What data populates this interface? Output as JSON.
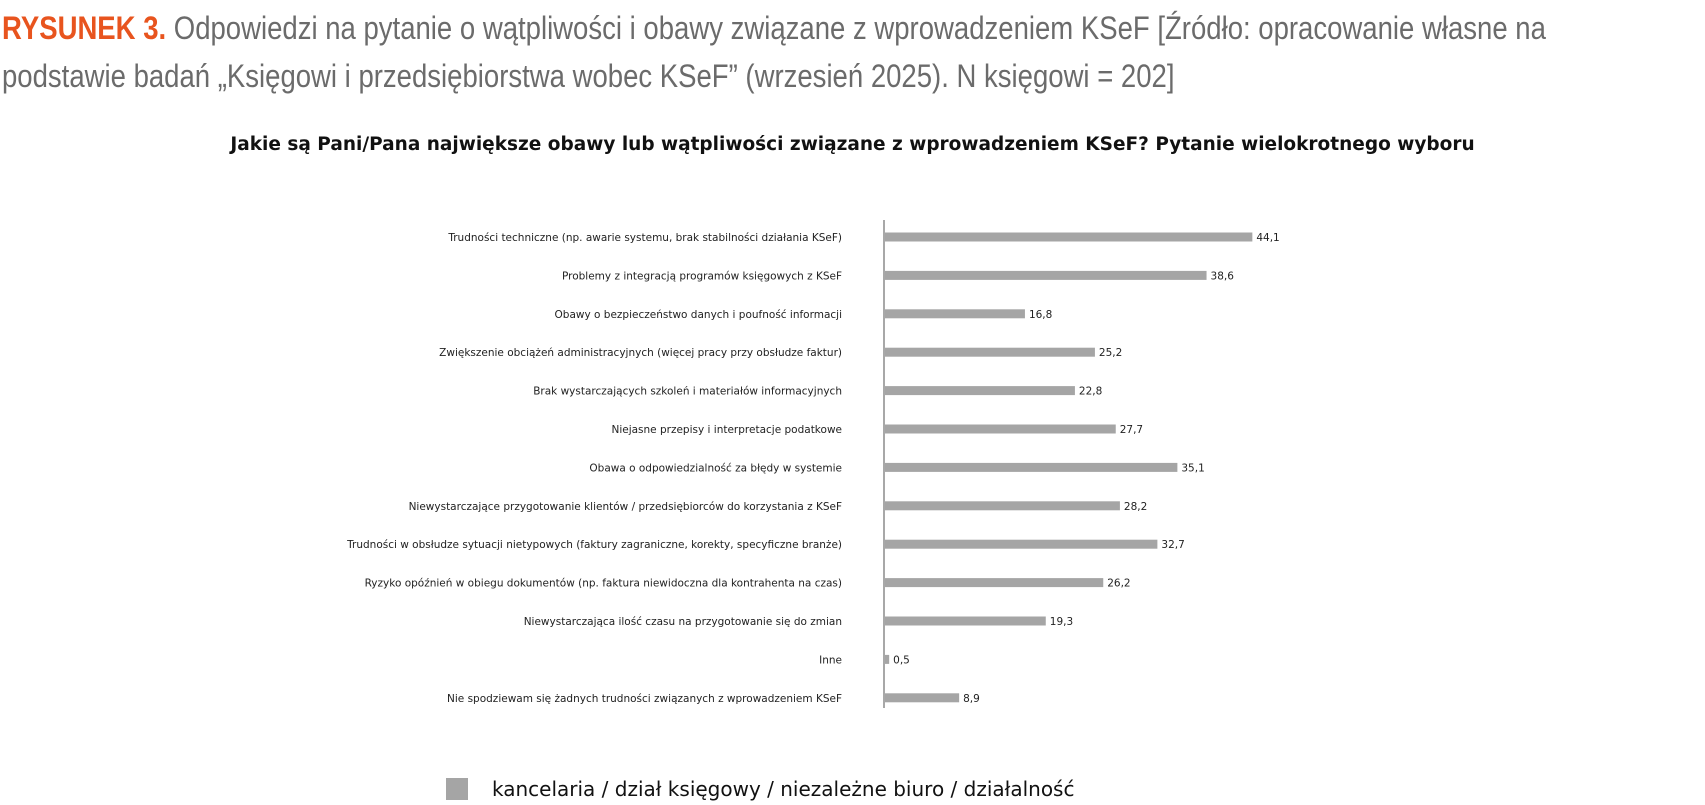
{
  "figure_caption": {
    "label": "RYSUNEK 3.",
    "line1": " Odpowiedzi na pytanie o wątpliwości i obawy związane z wprowadzeniem KSeF [Źródło: opracowanie własne na",
    "line2": "podstawie badań „Księgowi i przedsiębiorstwa wobec KSeF” (wrzesień 2025). N księgowi = 202]"
  },
  "colors": {
    "caption_label": "#e8541e",
    "caption_text": "#6b6b6b",
    "bar": "#a5a5a5",
    "axis": "#8c8c8c"
  },
  "chart_data": {
    "type": "bar",
    "orientation": "horizontal",
    "title": "Jakie są Pani/Pana największe obawy lub wątpliwości związane z wprowadzeniem KSeF? Pytanie wielokrotnego wyboru",
    "categories": [
      "Trudności techniczne (np. awarie systemu, brak stabilności działania KSeF)",
      "Problemy z integracją programów księgowych z KSeF",
      "Obawy o bezpieczeństwo danych i poufność informacji",
      "Zwiększenie obciążeń administracyjnych (więcej pracy przy obsłudze faktur)",
      "Brak wystarczających szkoleń i materiałów informacyjnych",
      "Niejasne przepisy i interpretacje podatkowe",
      "Obawa o odpowiedzialność za błędy w systemie",
      "Niewystarczające przygotowanie klientów / przedsiębiorców do korzystania z KSeF",
      "Trudności w obsłudze sytuacji nietypowych (faktury zagraniczne, korekty, specyficzne branże)",
      "Ryzyko opóźnień w obiegu dokumentów (np. faktura niewidoczna dla kontrahenta na czas)",
      "Niewystarczająca ilość czasu na przygotowanie się do zmian",
      "Inne",
      "Nie spodziewam się żadnych trudności związanych z wprowadzeniem KSeF"
    ],
    "series": [
      {
        "name": "kancelaria / dział księgowy / niezależne biuro / działalność",
        "values": [
          44.1,
          38.6,
          16.8,
          25.2,
          22.8,
          27.7,
          35.1,
          28.2,
          32.7,
          26.2,
          19.3,
          0.5,
          8.9
        ],
        "labels": [
          "44,1",
          "38,6",
          "16,8",
          "25,2",
          "22,8",
          "27,7",
          "35,1",
          "28,2",
          "32,7",
          "26,2",
          "19,3",
          "0,5",
          "8,9"
        ]
      }
    ],
    "grid": false,
    "legend_position": "bottom"
  }
}
